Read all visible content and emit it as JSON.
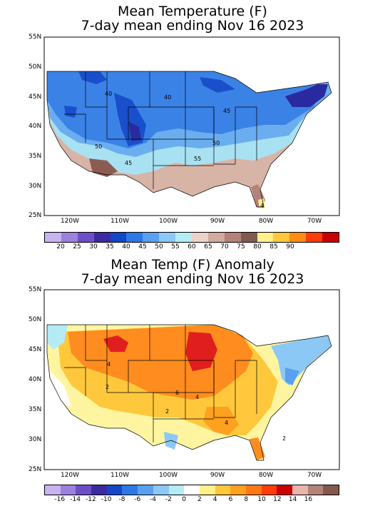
{
  "top_panel": {
    "title_line1": "Mean Temperature (F)",
    "title_line2": "7-day mean ending Nov 16 2023",
    "lat_labels": [
      "55N",
      "50N",
      "45N",
      "40N",
      "35N",
      "30N",
      "25N"
    ],
    "lon_labels": [
      "120W",
      "110W",
      "100W",
      "90W",
      "80W",
      "70W"
    ],
    "contour_labels": [
      "40",
      "40",
      "45",
      "50",
      "50",
      "55",
      "45",
      "4"
    ],
    "colorbar": {
      "colors": [
        "#c8b4f0",
        "#9c82dc",
        "#6e4ec8",
        "#3c2aa0",
        "#1446c8",
        "#2c78e6",
        "#5aa0f0",
        "#8cc8f5",
        "#b4ebf5",
        "#ebd2c8",
        "#d2aaa0",
        "#b48278",
        "#825a50",
        "#fff08c",
        "#ffc83c",
        "#ff8c14",
        "#ff3c0a",
        "#c80000"
      ],
      "labels": [
        "20",
        "25",
        "30",
        "35",
        "40",
        "45",
        "50",
        "55",
        "60",
        "65",
        "70",
        "75",
        "80",
        "85",
        "90"
      ]
    }
  },
  "bottom_panel": {
    "title_line1": "Mean Temp (F) Anomaly",
    "title_line2": "7-day mean ending Nov 16 2023",
    "lat_labels": [
      "55N",
      "50N",
      "45N",
      "40N",
      "35N",
      "30N",
      "25N"
    ],
    "lon_labels": [
      "120W",
      "110W",
      "100W",
      "90W",
      "80W",
      "70W"
    ],
    "contour_labels": [
      "4",
      "2",
      "6",
      "4",
      "2",
      "4",
      "2"
    ],
    "colorbar": {
      "colors": [
        "#c8b4f0",
        "#9c82dc",
        "#6e4ec8",
        "#3c2aa0",
        "#1446c8",
        "#2c78e6",
        "#5aa0f0",
        "#8cc8f5",
        "#b4ebf5",
        "#ffffff",
        "#fff08c",
        "#ffc83c",
        "#ffa01e",
        "#ff7814",
        "#ff3c0a",
        "#c80000",
        "#ebb4aa",
        "#b48278",
        "#825a50"
      ],
      "labels": [
        "-16",
        "-14",
        "-12",
        "-10",
        "-8",
        "-6",
        "-4",
        "-2",
        "0",
        "2",
        "4",
        "6",
        "8",
        "10",
        "12",
        "14",
        "16"
      ]
    }
  }
}
